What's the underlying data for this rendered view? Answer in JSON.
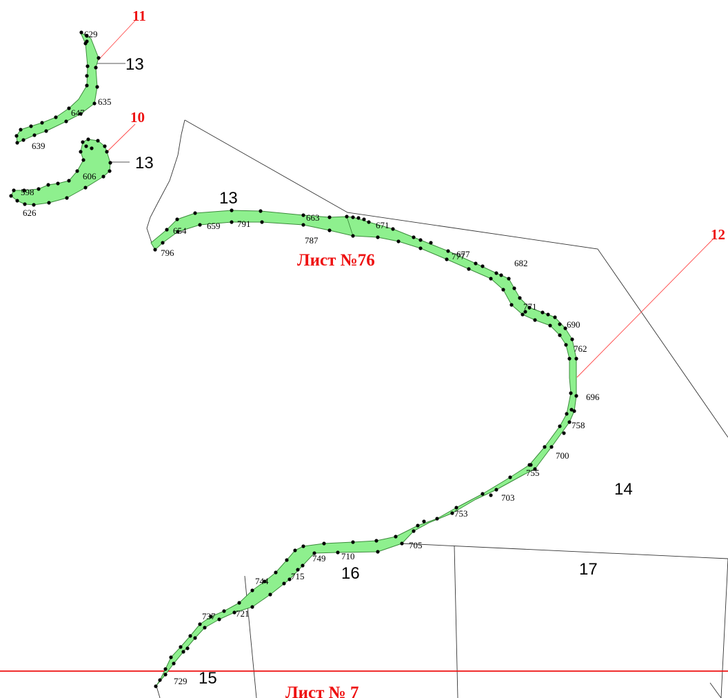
{
  "colors": {
    "strip_fill": "#8ef08e",
    "strip_stroke": "#3a8a3a",
    "point": "#000000",
    "boundary": "#333333",
    "callout": "#ff3b3b",
    "sheet_line": "#ee1111",
    "sheet_text": "#ee1111",
    "callout_text": "#ee1111"
  },
  "sheet_labels": {
    "upper": "Лист №76",
    "lower": "Лист № 7"
  },
  "callouts": {
    "c11": "11",
    "c10": "10",
    "c12": "12"
  },
  "parcel_labels": {
    "a": "13",
    "b": "13",
    "c": "13",
    "d": "14",
    "e": "16",
    "f": "17",
    "g": "15"
  },
  "point_labels": {
    "p629": "629",
    "p635": "635",
    "p647": "647",
    "p639": "639",
    "p606": "606",
    "p598": "598",
    "p626": "626",
    "p654": "654",
    "p659": "659",
    "p791": "791",
    "p663": "663",
    "p787": "787",
    "p671": "671",
    "p796": "796",
    "p677": "677",
    "p777": "777",
    "p682": "682",
    "p771": "771",
    "p690": "690",
    "p762": "762",
    "p696": "696",
    "p758": "758",
    "p700": "700",
    "p755": "755",
    "p703": "703",
    "p753": "753",
    "p705": "705",
    "p710": "710",
    "p749": "749",
    "p715": "715",
    "p744": "744",
    "p737": "737",
    "p721": "721",
    "p729": "729"
  }
}
